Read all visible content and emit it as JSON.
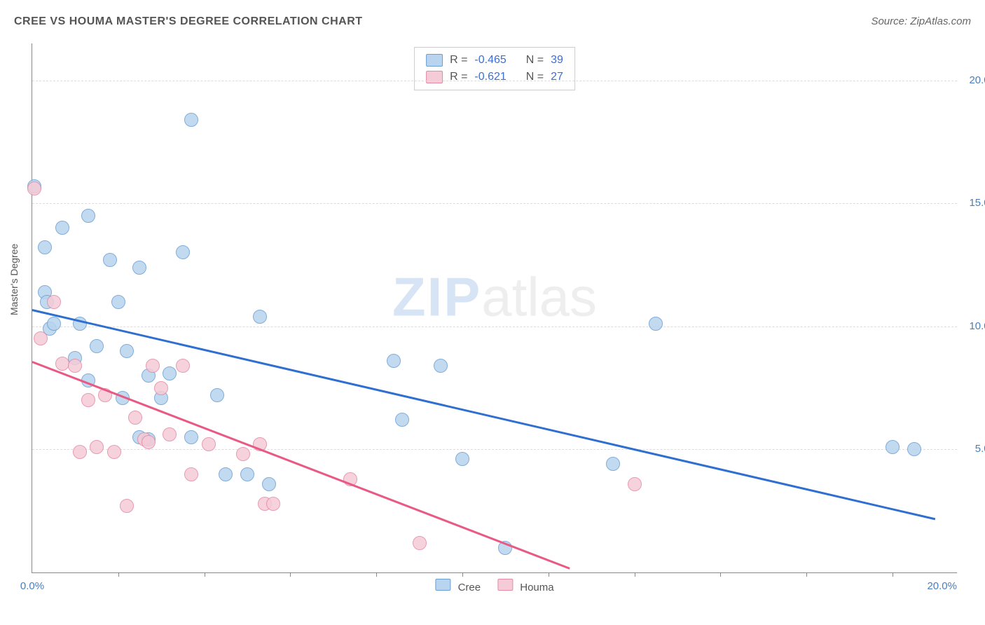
{
  "title": "CREE VS HOUMA MASTER'S DEGREE CORRELATION CHART",
  "source": "Source: ZipAtlas.com",
  "ylabel": "Master's Degree",
  "watermark": {
    "zip": "ZIP",
    "atlas": "atlas"
  },
  "chart": {
    "type": "scatter",
    "xlim": [
      0,
      21.5
    ],
    "ylim": [
      0,
      21.5
    ],
    "x_axis_label_min": "0.0%",
    "x_axis_label_max": "20.0%",
    "ytick_pct": [
      5.0,
      10.0,
      15.0,
      20.0
    ],
    "xtick_minor_pct": [
      2.0,
      4.0,
      6.0,
      8.0,
      10.0,
      12.0,
      14.0,
      16.0,
      18.0,
      20.0
    ],
    "grid_color": "#dcdcdc",
    "axis_color": "#888888",
    "tick_label_color": "#4a7ebb",
    "background_color": "#ffffff"
  },
  "series": [
    {
      "name": "Cree",
      "fill": "#b8d4ee",
      "stroke": "#6a9fd4",
      "trend_color": "#2e6fd0",
      "legend_swatch_fill": "#b8d4ee",
      "legend_swatch_border": "#6a9fd4",
      "R": "-0.465",
      "N": "39",
      "trend": {
        "x1": 0.0,
        "y1": 10.7,
        "x2": 21.0,
        "y2": 2.2
      },
      "point_radius": 10,
      "points": [
        [
          0.05,
          15.7
        ],
        [
          0.3,
          13.2
        ],
        [
          0.3,
          11.4
        ],
        [
          0.35,
          11.0
        ],
        [
          0.4,
          9.9
        ],
        [
          0.5,
          10.1
        ],
        [
          0.7,
          14.0
        ],
        [
          1.0,
          8.7
        ],
        [
          1.1,
          10.1
        ],
        [
          1.3,
          14.5
        ],
        [
          1.3,
          7.8
        ],
        [
          1.5,
          9.2
        ],
        [
          1.8,
          12.7
        ],
        [
          2.0,
          11.0
        ],
        [
          2.1,
          7.1
        ],
        [
          2.2,
          9.0
        ],
        [
          2.5,
          12.4
        ],
        [
          2.5,
          5.5
        ],
        [
          2.7,
          8.0
        ],
        [
          2.7,
          5.4
        ],
        [
          3.0,
          7.1
        ],
        [
          3.2,
          8.1
        ],
        [
          3.5,
          13.0
        ],
        [
          3.7,
          5.5
        ],
        [
          3.7,
          18.4
        ],
        [
          4.3,
          7.2
        ],
        [
          4.5,
          4.0
        ],
        [
          5.0,
          4.0
        ],
        [
          5.3,
          10.4
        ],
        [
          5.5,
          3.6
        ],
        [
          8.4,
          8.6
        ],
        [
          8.6,
          6.2
        ],
        [
          9.5,
          8.4
        ],
        [
          10.0,
          4.6
        ],
        [
          11.0,
          1.0
        ],
        [
          13.5,
          4.4
        ],
        [
          14.5,
          10.1
        ],
        [
          20.0,
          5.1
        ],
        [
          20.5,
          5.0
        ]
      ]
    },
    {
      "name": "Houma",
      "fill": "#f5cbd7",
      "stroke": "#e48aa5",
      "trend_color": "#e85a84",
      "legend_swatch_fill": "#f5cbd7",
      "legend_swatch_border": "#e48aa5",
      "R": "-0.621",
      "N": "27",
      "trend": {
        "x1": 0.0,
        "y1": 8.6,
        "x2": 12.5,
        "y2": 0.2
      },
      "point_radius": 10,
      "points": [
        [
          0.05,
          15.6
        ],
        [
          0.2,
          9.5
        ],
        [
          0.5,
          11.0
        ],
        [
          0.7,
          8.5
        ],
        [
          1.0,
          8.4
        ],
        [
          1.1,
          4.9
        ],
        [
          1.3,
          7.0
        ],
        [
          1.5,
          5.1
        ],
        [
          1.7,
          7.2
        ],
        [
          1.9,
          4.9
        ],
        [
          2.2,
          2.7
        ],
        [
          2.4,
          6.3
        ],
        [
          2.6,
          5.4
        ],
        [
          2.7,
          5.3
        ],
        [
          2.8,
          8.4
        ],
        [
          3.0,
          7.5
        ],
        [
          3.2,
          5.6
        ],
        [
          3.5,
          8.4
        ],
        [
          3.7,
          4.0
        ],
        [
          4.1,
          5.2
        ],
        [
          4.9,
          4.8
        ],
        [
          5.3,
          5.2
        ],
        [
          5.4,
          2.8
        ],
        [
          5.6,
          2.8
        ],
        [
          7.4,
          3.8
        ],
        [
          9.0,
          1.2
        ],
        [
          14.0,
          3.6
        ]
      ]
    }
  ],
  "bottom_legend": [
    {
      "label": "Cree",
      "fill": "#b8d4ee",
      "border": "#6a9fd4"
    },
    {
      "label": "Houma",
      "fill": "#f5cbd7",
      "border": "#e48aa5"
    }
  ]
}
